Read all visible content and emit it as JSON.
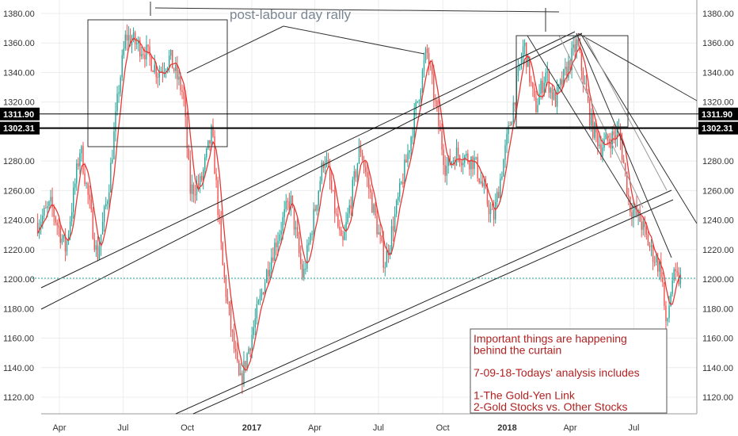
{
  "chart_data": {
    "type": "candlestick",
    "ylim": [
      1110,
      1385
    ],
    "grid": true,
    "y_ticks": [
      1120,
      1140,
      1160,
      1180,
      1200,
      1220,
      1240,
      1260,
      1280,
      1320,
      1340,
      1360,
      1380
    ],
    "x_labels": [
      "Apr",
      "Jul",
      "Oct",
      "2017",
      "Apr",
      "Jul",
      "Oct",
      "2018",
      "Apr",
      "Jul"
    ],
    "horizontal_levels": [
      {
        "value": 1311.9,
        "label": "1311.90"
      },
      {
        "value": 1302.31,
        "label": "1302.31"
      }
    ],
    "current_price": 1200.5,
    "annotation_title": "post-labour day rally",
    "note_lines": [
      "Important things are happening",
      "behind the curtain",
      "",
      "7-09-18-Todays' analysis includes",
      "",
      "1-The Gold-Yen Link",
      "2-Gold Stocks vs. Other Stocks"
    ],
    "price_path": [
      {
        "date": "2016-03-01",
        "price": 1238
      },
      {
        "date": "2016-03-20",
        "price": 1250
      },
      {
        "date": "2016-04-10",
        "price": 1220
      },
      {
        "date": "2016-05-01",
        "price": 1290
      },
      {
        "date": "2016-05-25",
        "price": 1215
      },
      {
        "date": "2016-06-10",
        "price": 1260
      },
      {
        "date": "2016-06-25",
        "price": 1330
      },
      {
        "date": "2016-07-05",
        "price": 1365
      },
      {
        "date": "2016-08-01",
        "price": 1355
      },
      {
        "date": "2016-08-20",
        "price": 1340
      },
      {
        "date": "2016-09-06",
        "price": 1350
      },
      {
        "date": "2016-09-25",
        "price": 1325
      },
      {
        "date": "2016-10-05",
        "price": 1260
      },
      {
        "date": "2016-10-20",
        "price": 1265
      },
      {
        "date": "2016-11-05",
        "price": 1300
      },
      {
        "date": "2016-11-20",
        "price": 1210
      },
      {
        "date": "2016-12-01",
        "price": 1170
      },
      {
        "date": "2016-12-15",
        "price": 1128
      },
      {
        "date": "2017-01-05",
        "price": 1170
      },
      {
        "date": "2017-01-25",
        "price": 1210
      },
      {
        "date": "2017-02-25",
        "price": 1255
      },
      {
        "date": "2017-03-15",
        "price": 1200
      },
      {
        "date": "2017-04-15",
        "price": 1285
      },
      {
        "date": "2017-05-10",
        "price": 1220
      },
      {
        "date": "2017-06-05",
        "price": 1290
      },
      {
        "date": "2017-07-10",
        "price": 1210
      },
      {
        "date": "2017-08-10",
        "price": 1280
      },
      {
        "date": "2017-09-08",
        "price": 1355
      },
      {
        "date": "2017-10-05",
        "price": 1275
      },
      {
        "date": "2017-10-20",
        "price": 1285
      },
      {
        "date": "2017-11-15",
        "price": 1280
      },
      {
        "date": "2017-12-12",
        "price": 1240
      },
      {
        "date": "2018-01-25",
        "price": 1360
      },
      {
        "date": "2018-02-10",
        "price": 1315
      },
      {
        "date": "2018-02-25",
        "price": 1340
      },
      {
        "date": "2018-03-10",
        "price": 1320
      },
      {
        "date": "2018-04-11",
        "price": 1360
      },
      {
        "date": "2018-05-01",
        "price": 1305
      },
      {
        "date": "2018-05-15",
        "price": 1290
      },
      {
        "date": "2018-06-10",
        "price": 1300
      },
      {
        "date": "2018-06-25",
        "price": 1250
      },
      {
        "date": "2018-07-10",
        "price": 1240
      },
      {
        "date": "2018-07-25",
        "price": 1220
      },
      {
        "date": "2018-08-10",
        "price": 1205
      },
      {
        "date": "2018-08-16",
        "price": 1165
      },
      {
        "date": "2018-08-25",
        "price": 1200
      },
      {
        "date": "2018-09-07",
        "price": 1200
      }
    ]
  }
}
